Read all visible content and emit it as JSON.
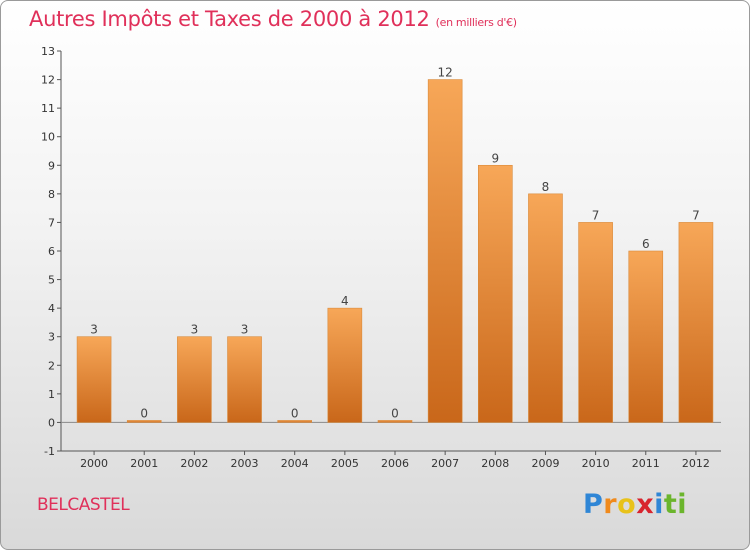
{
  "title": "Autres Impôts et Taxes de 2000 à 2012",
  "subtitle": "(en milliers d'€)",
  "commune": "BELCASTEL",
  "logo": {
    "letters": [
      "P",
      "r",
      "o",
      "x",
      "i",
      "ti"
    ]
  },
  "colors": {
    "title": "#e0305a",
    "bar_light": "#f7a758",
    "bar_dark": "#c9671a",
    "axis": "#555555"
  },
  "chart_data": {
    "type": "bar",
    "categories": [
      "2000",
      "2001",
      "2002",
      "2003",
      "2004",
      "2005",
      "2006",
      "2007",
      "2008",
      "2009",
      "2010",
      "2011",
      "2012"
    ],
    "values": [
      3,
      0,
      3,
      3,
      0,
      4,
      0,
      12,
      9,
      8,
      7,
      6,
      7
    ],
    "data_labels": [
      "3",
      "0",
      "3",
      "3",
      "0",
      "4",
      "0",
      "12",
      "9",
      "8",
      "7",
      "6",
      "7"
    ],
    "title": "Autres Impôts et Taxes de 2000 à 2012",
    "ylabel": "",
    "xlabel": "",
    "ylim": [
      -1,
      13
    ],
    "y_ticks": [
      "-1",
      "0",
      "1",
      "2",
      "3",
      "4",
      "5",
      "6",
      "7",
      "8",
      "9",
      "10",
      "11",
      "12",
      "13"
    ],
    "grid": false,
    "legend": "none"
  }
}
